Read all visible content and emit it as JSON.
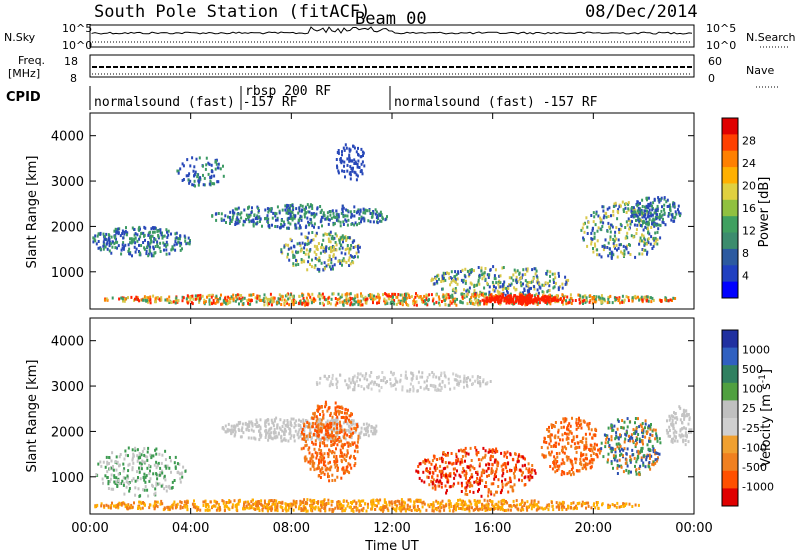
{
  "header": {
    "station": "South Pole Station (fitACF)",
    "beam": "Beam 00",
    "date": "08/Dec/2014"
  },
  "strip": {
    "nsky_label": "N.Sky",
    "nsky_ticks": [
      "10^5",
      "10^0"
    ],
    "nsearch_label": "N.Search",
    "freq_label_1": "Freq.",
    "freq_label_2": "[MHz]",
    "freq_ticks": [
      "18",
      "8"
    ],
    "nave_label": "Nave",
    "nave_ticks": [
      "60",
      "0"
    ],
    "cpid_label": "CPID",
    "cpid_segments": [
      "normalsound (fast) -157 RF",
      "rbsp 200 RF",
      "normalsound (fast) -157 RF"
    ]
  },
  "chart_data": [
    {
      "type": "heatmap",
      "panel": "power",
      "ylabel": "Slant Range [km]",
      "ylim": [
        180,
        4500
      ],
      "y_ticks": [
        1000,
        2000,
        3000,
        4000
      ],
      "x_ticks": [
        "00:00",
        "04:00",
        "08:00",
        "12:00",
        "16:00",
        "20:00",
        "00:00"
      ],
      "colorbar": {
        "label": "Power [dB]",
        "ticks": [
          "28",
          "24",
          "20",
          "16",
          "12",
          "8",
          "4"
        ],
        "colors": [
          "#e00000",
          "#ff4000",
          "#ff8000",
          "#ffb000",
          "#e0d040",
          "#90c040",
          "#40a060",
          "#3c8c6e",
          "#2c5aa0",
          "#2040c0",
          "#0000ff"
        ]
      }
    },
    {
      "type": "heatmap",
      "panel": "velocity",
      "ylabel": "Slant Range [km]",
      "ylim": [
        180,
        4500
      ],
      "y_ticks": [
        1000,
        2000,
        3000,
        4000
      ],
      "x_ticks": [
        "00:00",
        "04:00",
        "08:00",
        "12:00",
        "16:00",
        "20:00",
        "00:00"
      ],
      "xlabel": "Time UT",
      "colorbar": {
        "label": "Velocity [m s",
        "label_sup": "-1",
        "label_end": "]",
        "ticks": [
          "1000",
          "500",
          "100",
          "25",
          "-25",
          "-100",
          "-500",
          "-1000"
        ],
        "colors": [
          "#2030a0",
          "#3060c0",
          "#308060",
          "#50a040",
          "#c0c0c0",
          "#d0d0d0",
          "#f0a030",
          "#f08020",
          "#ff5000",
          "#e00000"
        ]
      }
    }
  ],
  "colors": {
    "power_blue": "#2848b8",
    "power_green": "#3c9a64",
    "power_yellow": "#d8c84a",
    "power_red": "#ff2000",
    "vel_orange": "#f07a18",
    "vel_grey": "#c4c4c4",
    "vel_green": "#3c9a50",
    "vel_blue": "#2c50b0"
  }
}
